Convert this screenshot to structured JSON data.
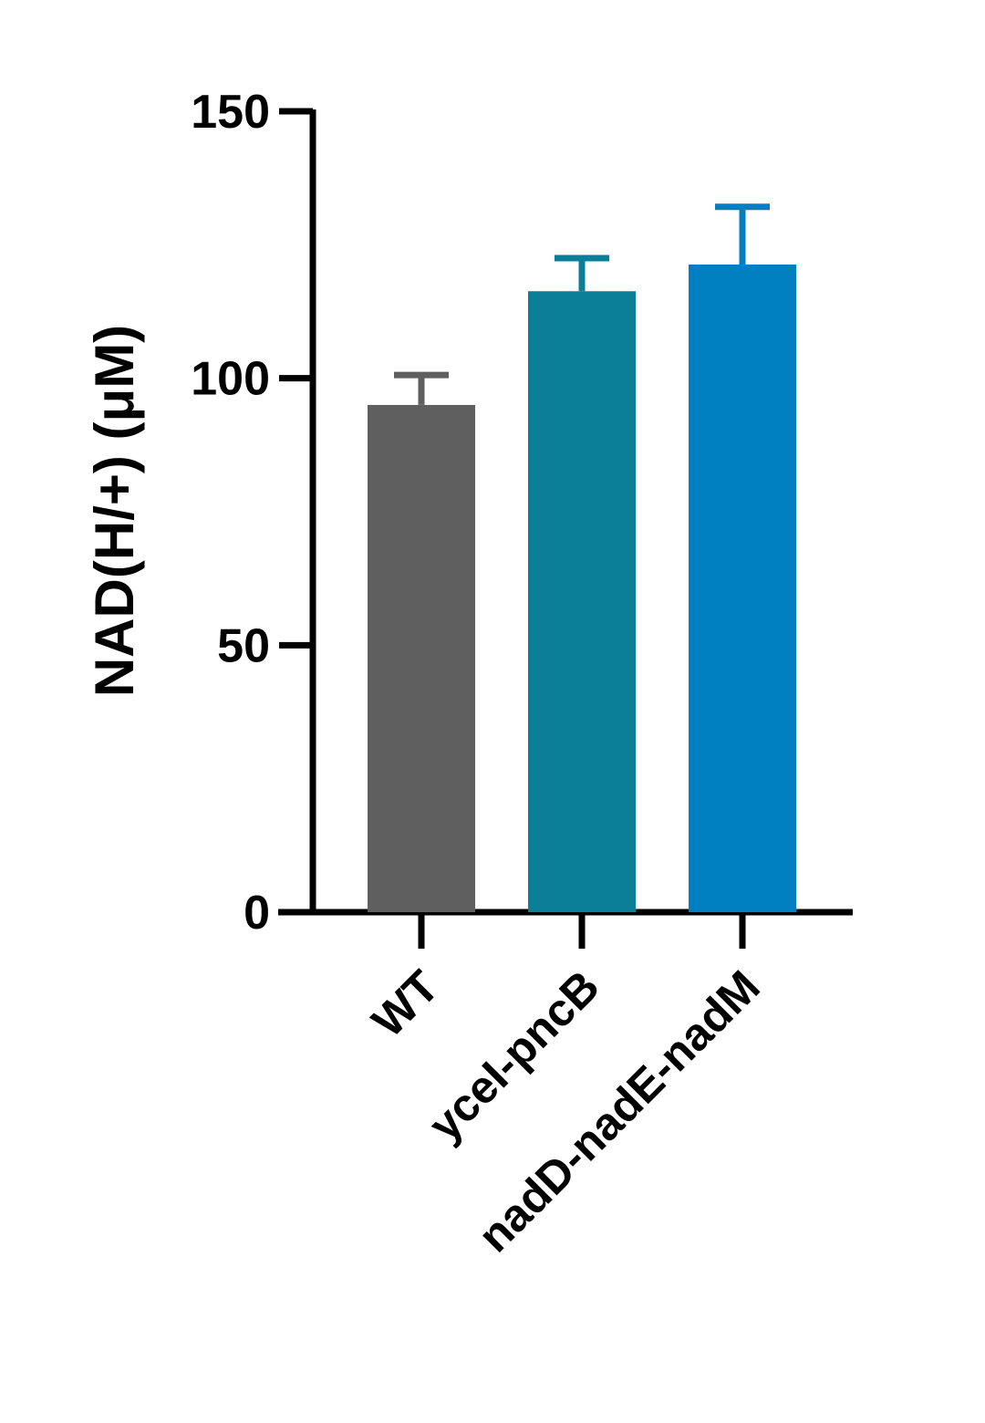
{
  "chart_data": {
    "type": "bar",
    "y_label": "NAD(H/+) (μM)",
    "categories": [
      "WT",
      "yceI-pncB",
      "nadD-nadE-nadM"
    ],
    "values": [
      95.0,
      116.3,
      121.3
    ],
    "errors": [
      5.6,
      6.2,
      10.8
    ],
    "colors": [
      "#5f5f5f",
      "#0a7f97",
      "#0080c0"
    ],
    "ylim": [
      0,
      150
    ],
    "yticks": [
      0,
      50,
      100,
      150
    ]
  }
}
